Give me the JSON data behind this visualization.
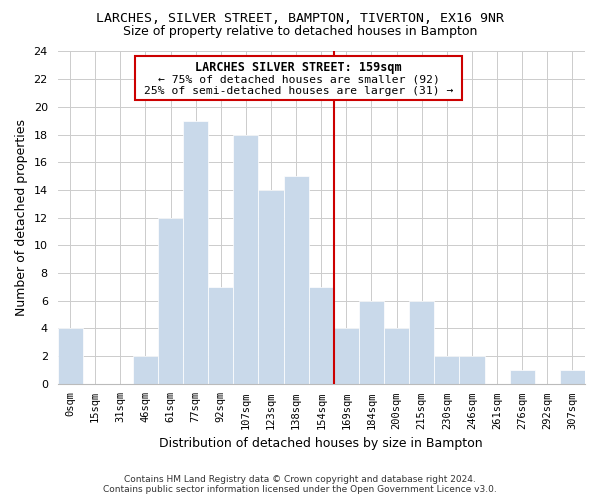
{
  "title": "LARCHES, SILVER STREET, BAMPTON, TIVERTON, EX16 9NR",
  "subtitle": "Size of property relative to detached houses in Bampton",
  "xlabel": "Distribution of detached houses by size in Bampton",
  "ylabel": "Number of detached properties",
  "bar_labels": [
    "0sqm",
    "15sqm",
    "31sqm",
    "46sqm",
    "61sqm",
    "77sqm",
    "92sqm",
    "107sqm",
    "123sqm",
    "138sqm",
    "154sqm",
    "169sqm",
    "184sqm",
    "200sqm",
    "215sqm",
    "230sqm",
    "246sqm",
    "261sqm",
    "276sqm",
    "292sqm",
    "307sqm"
  ],
  "bar_heights": [
    4,
    0,
    0,
    2,
    12,
    19,
    7,
    18,
    14,
    15,
    7,
    4,
    6,
    4,
    6,
    2,
    2,
    0,
    1,
    0,
    1
  ],
  "bar_color": "#c9d9ea",
  "bar_edge_color": "#ffffff",
  "ylim": [
    0,
    24
  ],
  "yticks": [
    0,
    2,
    4,
    6,
    8,
    10,
    12,
    14,
    16,
    18,
    20,
    22,
    24
  ],
  "property_line_x": 10.5,
  "property_line_color": "#cc0000",
  "annotation_title": "LARCHES SILVER STREET: 159sqm",
  "annotation_line1": "← 75% of detached houses are smaller (92)",
  "annotation_line2": "25% of semi-detached houses are larger (31) →",
  "annotation_box_color": "#ffffff",
  "annotation_box_edge": "#cc0000",
  "footer_line1": "Contains HM Land Registry data © Crown copyright and database right 2024.",
  "footer_line2": "Contains public sector information licensed under the Open Government Licence v3.0.",
  "background_color": "#ffffff",
  "grid_color": "#cccccc"
}
